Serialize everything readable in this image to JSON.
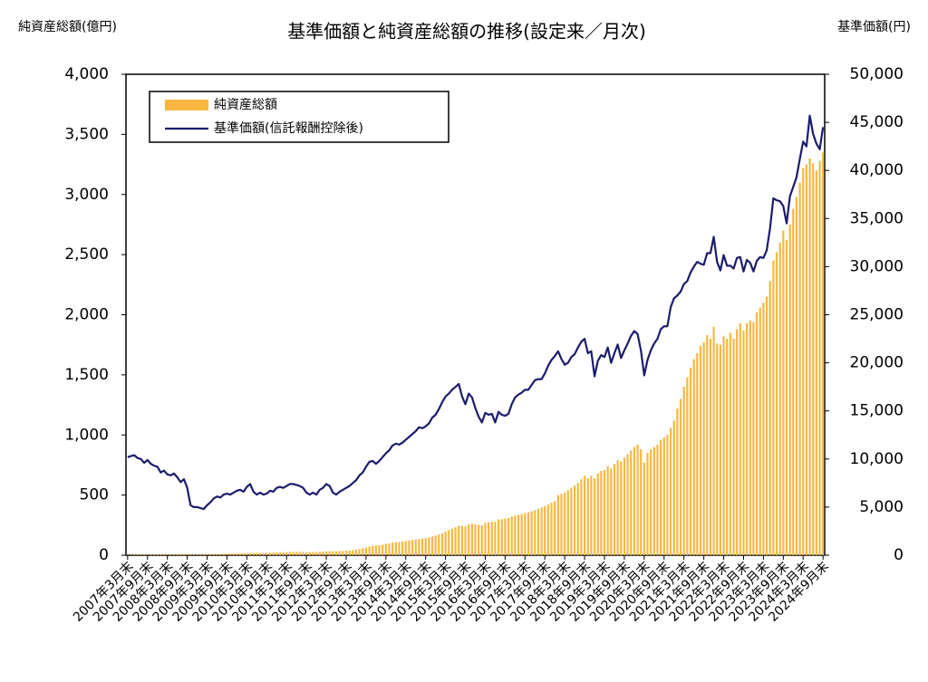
{
  "chart_data": {
    "type": "bar",
    "title": "基準価額と純資産総額の推移(設定来／月次)",
    "y_label": "純資産総額(億円)",
    "y2_label": "基準価額(円)",
    "categories": [
      "2007年3月末",
      null,
      null,
      null,
      null,
      null,
      "2007年9月末",
      null,
      null,
      null,
      null,
      null,
      "2008年3月末",
      null,
      null,
      null,
      null,
      null,
      "2008年9月末",
      null,
      null,
      null,
      null,
      null,
      "2009年3月末",
      null,
      null,
      null,
      null,
      null,
      "2009年9月末",
      null,
      null,
      null,
      null,
      null,
      "2010年3月末",
      null,
      null,
      null,
      null,
      null,
      "2010年9月末",
      null,
      null,
      null,
      null,
      null,
      "2011年3月末",
      null,
      null,
      null,
      null,
      null,
      "2011年9月末",
      null,
      null,
      null,
      null,
      null,
      "2012年3月末",
      null,
      null,
      null,
      null,
      null,
      "2012年9月末",
      null,
      null,
      null,
      null,
      null,
      "2013年3月末",
      null,
      null,
      null,
      null,
      null,
      "2013年9月末",
      null,
      null,
      null,
      null,
      null,
      "2014年3月末",
      null,
      null,
      null,
      null,
      null,
      "2014年9月末",
      null,
      null,
      null,
      null,
      null,
      "2015年3月末",
      null,
      null,
      null,
      null,
      null,
      "2015年9月末",
      null,
      null,
      null,
      null,
      null,
      "2016年3月末",
      null,
      null,
      null,
      null,
      null,
      "2016年9月末",
      null,
      null,
      null,
      null,
      null,
      "2017年3月末",
      null,
      null,
      null,
      null,
      null,
      "2017年9月末",
      null,
      null,
      null,
      null,
      null,
      "2018年3月末",
      null,
      null,
      null,
      null,
      null,
      "2018年9月末",
      null,
      null,
      null,
      null,
      null,
      "2019年3月末",
      null,
      null,
      null,
      null,
      null,
      "2019年9月末",
      null,
      null,
      null,
      null,
      null,
      "2020年3月末",
      null,
      null,
      null,
      null,
      null,
      "2020年9月末",
      null,
      null,
      null,
      null,
      null,
      "2021年3月末",
      null,
      null,
      null,
      null,
      null,
      "2021年9月末",
      null,
      null,
      null,
      null,
      null,
      "2022年3月末",
      null,
      null,
      null,
      null,
      null,
      "2022年9月末",
      null,
      null,
      null,
      null,
      null,
      "2023年3月末",
      null,
      null,
      null,
      null,
      null,
      "2023年9月末",
      null,
      null,
      null,
      null,
      null,
      "2024年3月末",
      null,
      null,
      null,
      null,
      null,
      "2024年9月末"
    ],
    "series": [
      {
        "name": "純資産総額",
        "type": "bar",
        "color": "#f9b73f",
        "values": [
          3,
          3,
          4,
          4,
          4,
          5,
          5,
          5,
          6,
          6,
          6,
          6,
          6,
          6,
          7,
          7,
          7,
          7,
          7,
          6,
          6,
          6,
          6,
          6,
          7,
          7,
          8,
          9,
          10,
          11,
          12,
          13,
          14,
          15,
          16,
          17,
          18,
          19,
          18,
          18,
          19,
          19,
          20,
          21,
          22,
          23,
          24,
          25,
          26,
          27,
          27,
          28,
          28,
          27,
          26,
          26,
          27,
          27,
          29,
          30,
          32,
          33,
          32,
          32,
          34,
          35,
          37,
          39,
          42,
          46,
          52,
          58,
          65,
          72,
          78,
          80,
          84,
          88,
          93,
          98,
          104,
          108,
          110,
          114,
          118,
          122,
          126,
          130,
          135,
          138,
          142,
          148,
          156,
          164,
          172,
          182,
          195,
          208,
          220,
          232,
          245,
          244,
          240,
          255,
          262,
          256,
          252,
          248,
          268,
          272,
          280,
          278,
          296,
          300,
          304,
          310,
          322,
          330,
          336,
          342,
          350,
          356,
          366,
          375,
          385,
          396,
          408,
          420,
          436,
          450,
          500,
          510,
          520,
          540,
          560,
          580,
          600,
          630,
          660,
          640,
          660,
          640,
          680,
          700,
          710,
          740,
          720,
          760,
          790,
          780,
          810,
          840,
          870,
          900,
          920,
          880,
          770,
          850,
          880,
          900,
          920,
          960,
          980,
          1000,
          1060,
          1120,
          1220,
          1300,
          1400,
          1480,
          1560,
          1630,
          1680,
          1740,
          1770,
          1830,
          1800,
          1900,
          1760,
          1750,
          1820,
          1800,
          1850,
          1800,
          1880,
          1930,
          1870,
          1930,
          1950,
          1940,
          2020,
          2060,
          2100,
          2150,
          2280,
          2450,
          2520,
          2600,
          2700,
          2620,
          2750,
          2880,
          2980,
          3100,
          3220,
          3250,
          3300,
          3260,
          3200,
          3280,
          3350
        ]
      },
      {
        "name": "基準価額(信託報酬控除後)",
        "type": "line",
        "color": "#1c1c6e",
        "axis": "y2",
        "values": [
          10200,
          10300,
          10400,
          10100,
          10000,
          9600,
          9900,
          9500,
          9300,
          9200,
          8600,
          8800,
          8400,
          8300,
          8500,
          8100,
          7600,
          7900,
          7000,
          5200,
          5000,
          5000,
          4900,
          4800,
          5200,
          5500,
          5900,
          6100,
          6000,
          6300,
          6400,
          6300,
          6500,
          6700,
          6800,
          6600,
          7100,
          7400,
          6600,
          6300,
          6500,
          6300,
          6400,
          6700,
          6600,
          7000,
          7100,
          7000,
          7200,
          7400,
          7400,
          7300,
          7200,
          7000,
          6500,
          6300,
          6500,
          6300,
          6800,
          7000,
          7400,
          7200,
          6500,
          6300,
          6600,
          6800,
          7000,
          7200,
          7500,
          7800,
          8300,
          8600,
          9200,
          9700,
          9800,
          9500,
          9800,
          10200,
          10600,
          10900,
          11400,
          11600,
          11500,
          11700,
          12000,
          12300,
          12600,
          12900,
          13300,
          13200,
          13400,
          13700,
          14300,
          14600,
          15200,
          15900,
          16500,
          16800,
          17200,
          17500,
          17800,
          16500,
          15700,
          16800,
          16400,
          15300,
          14400,
          13800,
          14800,
          14600,
          14700,
          13800,
          14900,
          14600,
          14500,
          14700,
          15700,
          16400,
          16700,
          16900,
          17200,
          17200,
          17700,
          18200,
          18300,
          18300,
          18900,
          19700,
          20300,
          20700,
          21200,
          20400,
          19800,
          20000,
          20600,
          20900,
          21600,
          22200,
          22500,
          21000,
          21200,
          18600,
          20200,
          20800,
          20600,
          21600,
          20000,
          21000,
          21900,
          20500,
          21300,
          22000,
          22800,
          23300,
          23000,
          21300,
          18700,
          20300,
          21300,
          22000,
          22500,
          23500,
          23800,
          23800,
          25800,
          26700,
          27000,
          27400,
          28200,
          28500,
          29400,
          30000,
          30500,
          30300,
          30200,
          31400,
          31400,
          33100,
          30500,
          29600,
          31200,
          30100,
          30100,
          29800,
          30900,
          31000,
          29500,
          30700,
          30400,
          29500,
          30600,
          31000,
          30900,
          31700,
          34000,
          37100,
          36900,
          36800,
          36300,
          34500,
          37300,
          38300,
          39300,
          41200,
          43000,
          42500,
          45700,
          43800,
          42800,
          42200,
          44500
        ]
      }
    ],
    "ylim": [
      0,
      4000
    ],
    "yticks": [
      0,
      500,
      {
        "value": 1000,
        "label": "1,000"
      },
      {
        "value": 1500,
        "label": "1,500"
      },
      {
        "value": 2000,
        "label": "2,000"
      },
      {
        "value": 2500,
        "label": "2,500"
      },
      {
        "value": 3000,
        "label": "3,000"
      },
      {
        "value": 3500,
        "label": "3,500"
      },
      {
        "value": 4000,
        "label": "4,000"
      }
    ],
    "y2lim": [
      0,
      50000
    ],
    "y2ticks": [
      0,
      {
        "value": 5000,
        "label": "5,000"
      },
      {
        "value": 10000,
        "label": "10,000"
      },
      {
        "value": 15000,
        "label": "15,000"
      },
      {
        "value": 20000,
        "label": "20,000"
      },
      {
        "value": 25000,
        "label": "25,000"
      },
      {
        "value": 30000,
        "label": "30,000"
      },
      {
        "value": 35000,
        "label": "35,000"
      },
      {
        "value": 40000,
        "label": "40,000"
      },
      {
        "value": 45000,
        "label": "45,000"
      },
      {
        "value": 50000,
        "label": "50,000"
      }
    ],
    "legend": "upper left"
  }
}
